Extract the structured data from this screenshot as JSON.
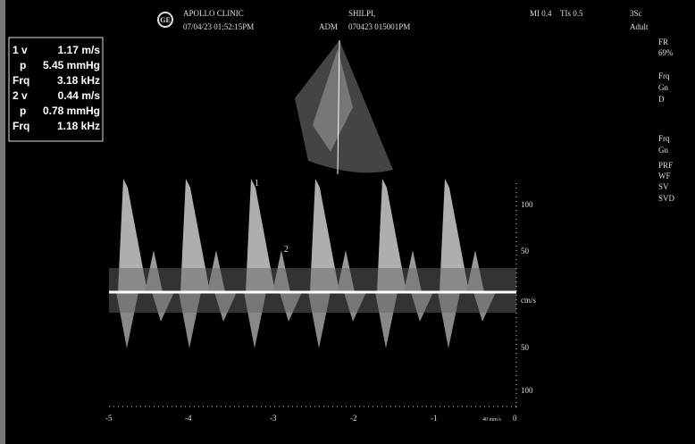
{
  "header": {
    "logo": "GE",
    "clinic": "APOLLO CLINIC",
    "clinic_datetime": "07/04/23 01:52:15PM",
    "operator": "ADM",
    "patient": "SHILPI,",
    "patient_id": "070423 015001PM",
    "mi": "MI 0.4",
    "tis": "TIs 0.5",
    "probe": "3Sc",
    "preset": "Adult"
  },
  "measurements": [
    [
      "1 v",
      "1.17 m/s"
    ],
    [
      "p",
      "5.45 mmHg"
    ],
    [
      "Frq",
      "3.18 kHz"
    ],
    [
      "2 v",
      "0.44 m/s"
    ],
    [
      "p",
      "0.78 mmHg"
    ],
    [
      "Frq",
      "1.18 kHz"
    ]
  ],
  "side_panel": [
    "FR",
    "69%",
    "Frq",
    "Gn",
    "D",
    "Frq",
    "Gn",
    "PRF",
    "WF",
    "SV",
    "SVD"
  ],
  "markers": [
    "1",
    "2"
  ],
  "velocity_scale": [
    "100",
    "50",
    "cm/s",
    "50",
    "100"
  ],
  "time_axis": [
    "-5",
    "-4",
    "-3",
    "-2",
    "-1",
    "40 mm/s",
    "0"
  ]
}
